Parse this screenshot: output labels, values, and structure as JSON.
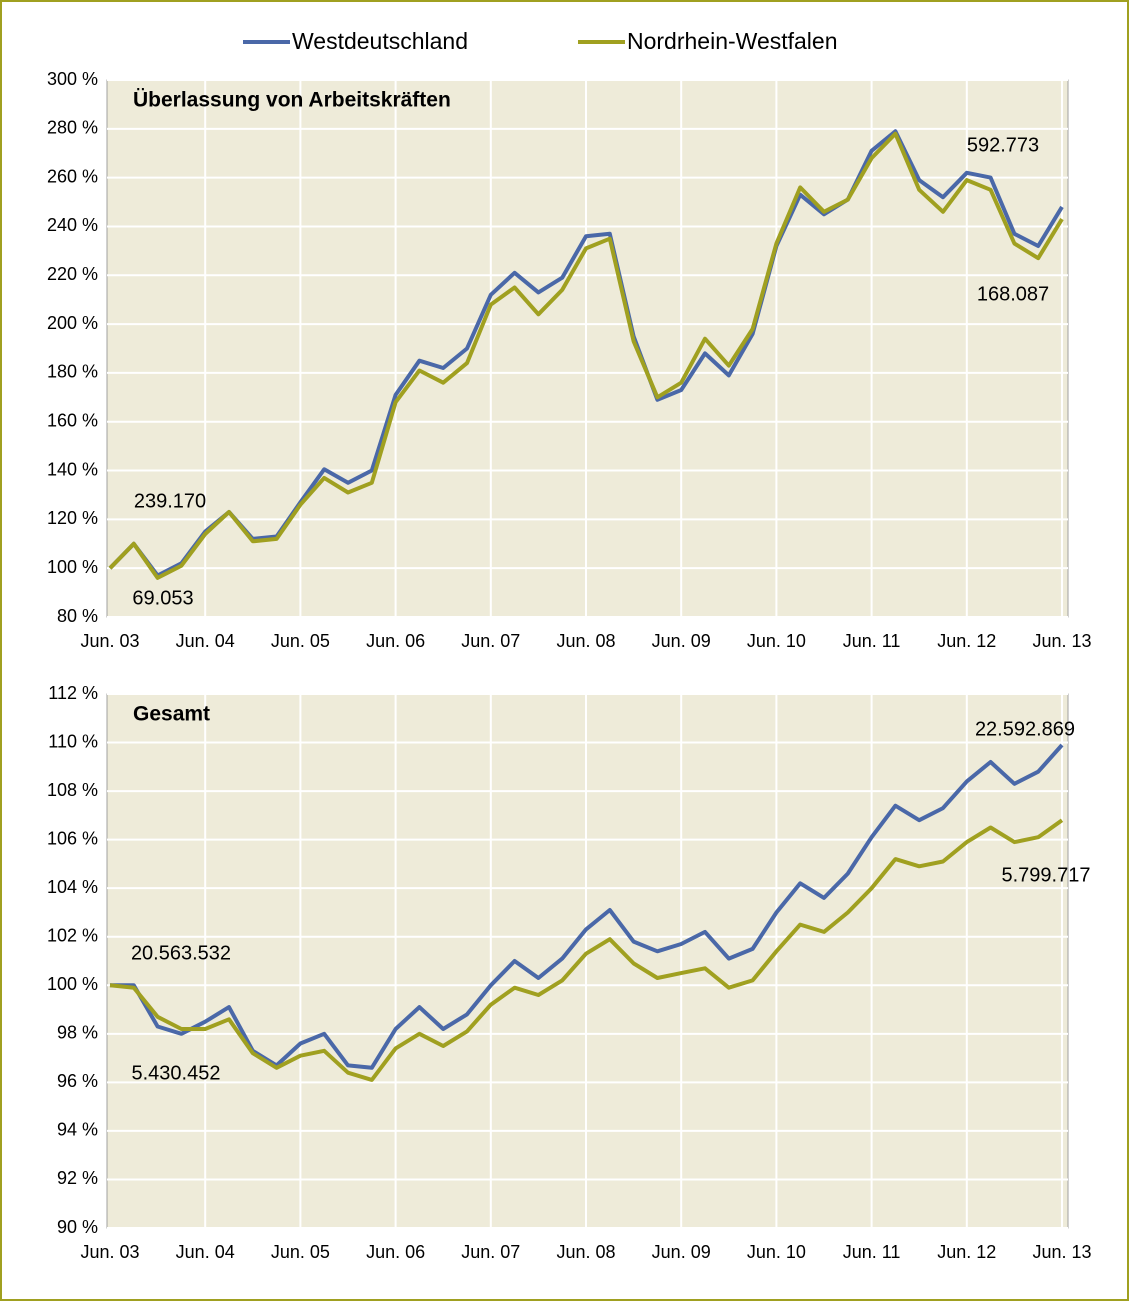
{
  "chart_data": [
    {
      "type": "line",
      "title": "Überlassung von Arbeitskräften",
      "legend": "top",
      "categories": [
        "Jun. 03",
        null,
        null,
        null,
        "Jun. 04",
        null,
        null,
        null,
        "Jun. 05",
        null,
        null,
        null,
        "Jun. 06",
        null,
        null,
        null,
        "Jun. 07",
        null,
        null,
        null,
        "Jun. 08",
        null,
        null,
        null,
        "Jun. 09",
        null,
        null,
        null,
        "Jun. 10",
        null,
        null,
        null,
        "Jun. 11",
        null,
        null,
        null,
        "Jun. 12",
        null,
        null,
        null,
        "Jun. 13"
      ],
      "series": [
        {
          "name": "Westdeutschland",
          "color": "#4a68a8",
          "labels": [
            "239.170",
            "592.773"
          ],
          "values": [
            100,
            110,
            97,
            102,
            115,
            123,
            112,
            113,
            127,
            140.5,
            135,
            140,
            171,
            185,
            182,
            190,
            212,
            221,
            213,
            219,
            236,
            237,
            195,
            169,
            173,
            188,
            179,
            196,
            232,
            253,
            245,
            251,
            271,
            279,
            259,
            252,
            262,
            260,
            237,
            232,
            248
          ]
        },
        {
          "name": "Nordrhein-Westfalen",
          "color": "#a0a020",
          "labels": [
            "69.053",
            "168.087"
          ],
          "values": [
            100,
            110,
            96,
            101,
            114,
            123,
            111,
            112,
            126,
            137,
            131,
            135,
            168,
            181,
            176,
            184,
            208,
            215,
            204,
            214,
            231,
            235,
            193,
            170,
            176,
            194,
            183,
            198,
            233,
            256,
            246,
            251,
            268,
            278,
            255,
            246,
            259,
            255,
            233,
            227,
            243
          ]
        }
      ],
      "ylim": [
        80,
        300
      ],
      "yticks": [
        {
          "value": 80,
          "label": "80 %"
        },
        {
          "value": 100,
          "label": "100 %"
        },
        {
          "value": 120,
          "label": "120 %"
        },
        {
          "value": 140,
          "label": "140 %"
        },
        {
          "value": 160,
          "label": "160 %"
        },
        {
          "value": 180,
          "label": "180 %"
        },
        {
          "value": 200,
          "label": "200 %"
        },
        {
          "value": 220,
          "label": "220 %"
        },
        {
          "value": 240,
          "label": "240 %"
        },
        {
          "value": 260,
          "label": "260 %"
        },
        {
          "value": 280,
          "label": "280 %"
        },
        {
          "value": 300,
          "label": "300 %"
        }
      ],
      "grid": true
    },
    {
      "type": "line",
      "title": "Gesamt",
      "categories": [
        "Jun. 03",
        null,
        null,
        null,
        "Jun. 04",
        null,
        null,
        null,
        "Jun. 05",
        null,
        null,
        null,
        "Jun. 06",
        null,
        null,
        null,
        "Jun. 07",
        null,
        null,
        null,
        "Jun. 08",
        null,
        null,
        null,
        "Jun. 09",
        null,
        null,
        null,
        "Jun. 10",
        null,
        null,
        null,
        "Jun. 11",
        null,
        null,
        null,
        "Jun. 12",
        null,
        null,
        null,
        "Jun. 13"
      ],
      "series": [
        {
          "color": "#4a68a8",
          "labels": [
            "20.563.532",
            "22.592.869"
          ],
          "values": [
            100,
            100,
            98.3,
            98.0,
            98.5,
            99.1,
            97.3,
            96.7,
            97.6,
            98.0,
            96.7,
            96.6,
            98.2,
            99.1,
            98.2,
            98.8,
            100.0,
            101.0,
            100.3,
            101.1,
            102.3,
            103.1,
            101.8,
            101.4,
            101.7,
            102.2,
            101.1,
            101.5,
            103.0,
            104.2,
            103.6,
            104.6,
            106.1,
            107.4,
            106.8,
            107.3,
            108.4,
            109.2,
            108.3,
            108.8,
            109.9
          ]
        },
        {
          "color": "#a0a020",
          "labels": [
            "5.430.452",
            "5.799.717"
          ],
          "values": [
            100,
            99.9,
            98.7,
            98.2,
            98.2,
            98.6,
            97.2,
            96.6,
            97.1,
            97.3,
            96.4,
            96.1,
            97.4,
            98.0,
            97.5,
            98.1,
            99.2,
            99.9,
            99.6,
            100.2,
            101.3,
            101.9,
            100.9,
            100.3,
            100.5,
            100.7,
            99.9,
            100.2,
            101.4,
            102.5,
            102.2,
            103.0,
            104.0,
            105.2,
            104.9,
            105.1,
            105.9,
            106.5,
            105.9,
            106.1,
            106.8
          ]
        }
      ],
      "ylim": [
        90,
        112
      ],
      "yticks": [
        {
          "value": 90,
          "label": "90 %"
        },
        {
          "value": 92,
          "label": "92 %"
        },
        {
          "value": 94,
          "label": "94 %"
        },
        {
          "value": 96,
          "label": "96 %"
        },
        {
          "value": 98,
          "label": "98 %"
        },
        {
          "value": 100,
          "label": "100 %"
        },
        {
          "value": 102,
          "label": "102 %"
        },
        {
          "value": 104,
          "label": "104 %"
        },
        {
          "value": 106,
          "label": "106 %"
        },
        {
          "value": 108,
          "label": "108 %"
        },
        {
          "value": 110,
          "label": "110 %"
        },
        {
          "value": 112,
          "label": "112 %"
        }
      ],
      "grid": true
    }
  ]
}
